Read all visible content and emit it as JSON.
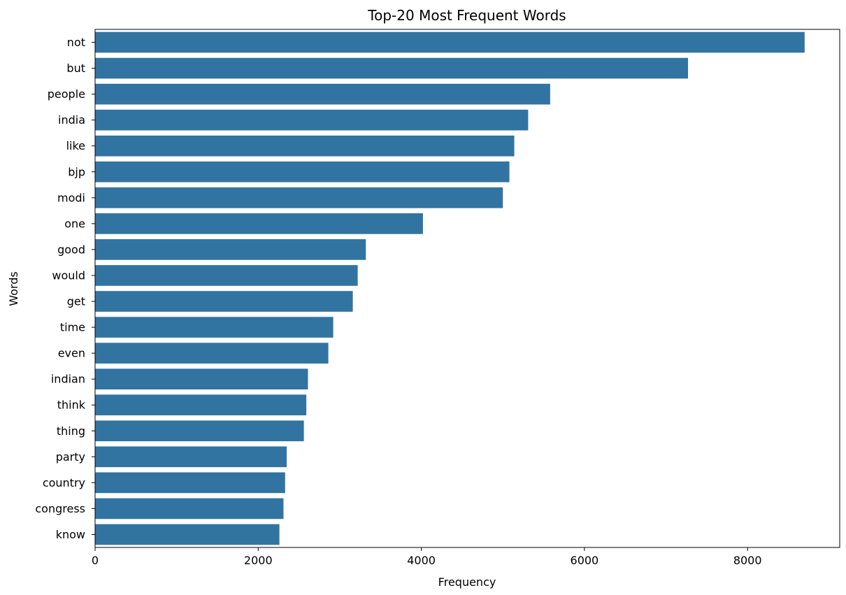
{
  "chart_data": {
    "type": "bar",
    "orientation": "horizontal",
    "title": "Top-20 Most Frequent Words",
    "xlabel": "Frequency",
    "ylabel": "Words",
    "xlim": [
      0,
      9130
    ],
    "xticks": [
      0,
      2000,
      4000,
      6000,
      8000
    ],
    "categories": [
      "not",
      "but",
      "people",
      "india",
      "like",
      "bjp",
      "modi",
      "one",
      "good",
      "would",
      "get",
      "time",
      "even",
      "indian",
      "think",
      "thing",
      "party",
      "country",
      "congress",
      "know"
    ],
    "values": [
      8700,
      7270,
      5580,
      5310,
      5140,
      5080,
      5000,
      4020,
      3320,
      3220,
      3160,
      2920,
      2860,
      2610,
      2590,
      2560,
      2350,
      2330,
      2310,
      2260
    ],
    "grid": false,
    "legend": "none",
    "bar_color": "#3274a1"
  }
}
